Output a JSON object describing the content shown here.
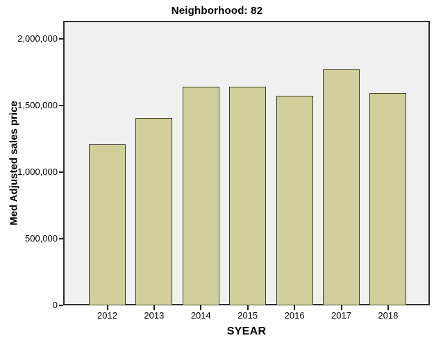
{
  "chart_data": {
    "type": "bar",
    "title": "Neighborhood: 82",
    "xlabel": "SYEAR",
    "ylabel": "Med Adjusted sales price",
    "categories": [
      "2012",
      "2013",
      "2014",
      "2015",
      "2016",
      "2017",
      "2018"
    ],
    "values": [
      1210000,
      1405000,
      1640000,
      1640000,
      1575000,
      1770000,
      1595000
    ],
    "ylim": [
      0,
      2000000
    ],
    "y_ticks": [
      0,
      500000,
      1000000,
      1500000,
      2000000
    ],
    "y_tick_labels": [
      "0",
      "500,000",
      "1,000,000",
      "1,500,000",
      "2,000,000"
    ],
    "grid": false,
    "legend": null,
    "colors": {
      "bar_fill": "#d2ce99",
      "bar_border": "#3b3b2a",
      "plot_background": "#f0f0f0",
      "frame_border": "#2e2e2e",
      "page_background": "#ffffff",
      "text": "#000000"
    }
  }
}
